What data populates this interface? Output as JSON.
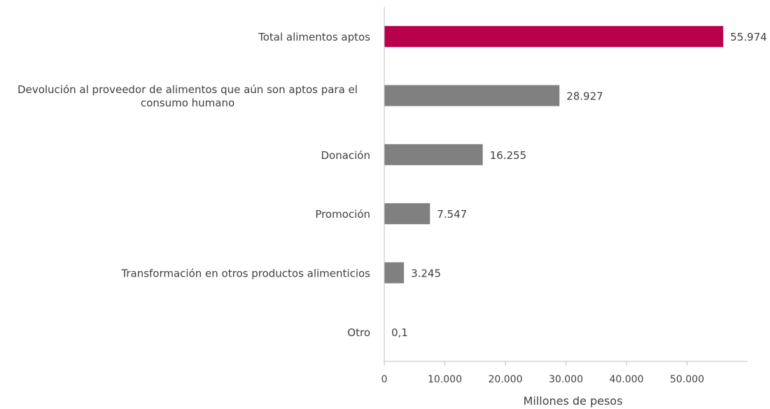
{
  "chart_data": {
    "type": "bar",
    "orientation": "horizontal",
    "categories": [
      "Total alimentos aptos",
      "Devolución al proveedor de alimentos que aún son aptos para el consumo humano",
      "Donación",
      "Promoción",
      "Transformación en otros productos alimenticios",
      "Otro"
    ],
    "category_label_lines": [
      [
        "Total alimentos aptos"
      ],
      [
        "Devolución al proveedor de alimentos que aún son aptos para el",
        "consumo humano"
      ],
      [
        "Donación"
      ],
      [
        "Promoción"
      ],
      [
        "Transformación en otros productos alimenticios"
      ],
      [
        "Otro"
      ]
    ],
    "values": [
      55974,
      28927,
      16255,
      7547,
      3245,
      0.1
    ],
    "value_labels": [
      "55.974",
      "28.927",
      "16.255",
      "7.547",
      "3.245",
      "0,1"
    ],
    "bar_colors": [
      "#b9004b",
      "#808080",
      "#808080",
      "#808080",
      "#808080",
      "#808080"
    ],
    "xlabel": "Millones de pesos",
    "ylabel": "",
    "xlim": [
      0,
      60000
    ],
    "x_ticks": [
      0,
      10000,
      20000,
      30000,
      40000,
      50000
    ],
    "x_tick_labels": [
      "0",
      "10.000",
      "20.000",
      "30.000",
      "40.000",
      "50.000"
    ],
    "grid": false,
    "legend": "none"
  }
}
